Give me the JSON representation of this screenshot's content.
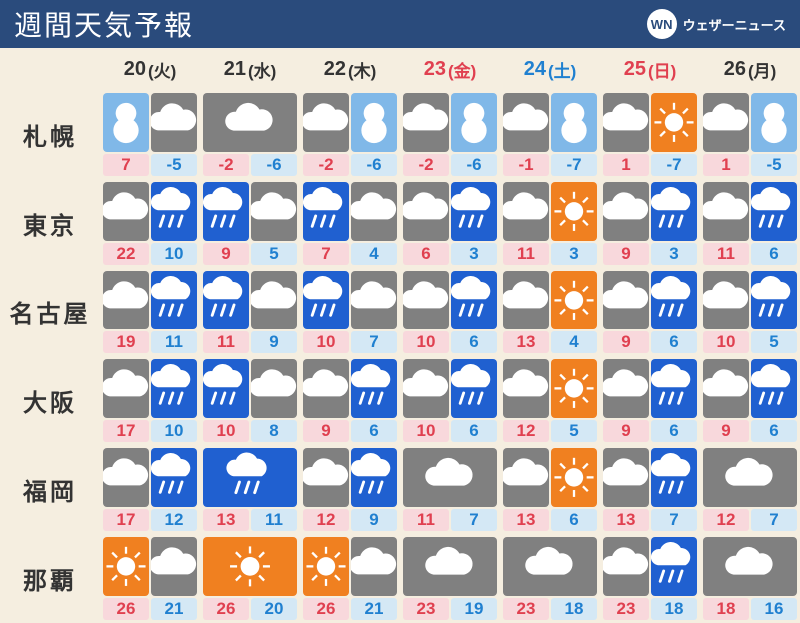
{
  "title": "週間天気予報",
  "brand": "ウェザーニュース",
  "brand_logo": "WN",
  "colors": {
    "header_bg": "#2a4b7c",
    "page_bg": "#f5eee0",
    "gray": "#808080",
    "blue": "#2060d0",
    "lightblue": "#80b8e8",
    "orange": "#f08020",
    "high_bg": "#f8d8dc",
    "high_fg": "#e04050",
    "low_bg": "#d4e8f5",
    "low_fg": "#2080d0",
    "weekday": "#333333",
    "fri_sun": "#e04050",
    "sat": "#2080d0"
  },
  "days": [
    {
      "num": "20",
      "label": "(火)",
      "color": "#333333"
    },
    {
      "num": "21",
      "label": "(水)",
      "color": "#333333"
    },
    {
      "num": "22",
      "label": "(木)",
      "color": "#333333"
    },
    {
      "num": "23",
      "label": "(金)",
      "color": "#e04050"
    },
    {
      "num": "24",
      "label": "(土)",
      "color": "#2080d0"
    },
    {
      "num": "25",
      "label": "(日)",
      "color": "#e04050"
    },
    {
      "num": "26",
      "label": "(月)",
      "color": "#333333"
    }
  ],
  "cities": [
    "札幌",
    "東京",
    "名古屋",
    "大阪",
    "福岡",
    "那覇"
  ],
  "forecast": [
    [
      {
        "i1": "snow",
        "c1": "lightblue",
        "i2": "cloud",
        "c2": "gray",
        "h": "7",
        "l": "-5"
      },
      {
        "i1": "cloud",
        "c1": "gray",
        "i2": "",
        "c2": "",
        "h": "-2",
        "l": "-6"
      },
      {
        "i1": "cloud",
        "c1": "gray",
        "i2": "snow",
        "c2": "lightblue",
        "h": "-2",
        "l": "-6"
      },
      {
        "i1": "cloud",
        "c1": "gray",
        "i2": "snow",
        "c2": "lightblue",
        "h": "-2",
        "l": "-6"
      },
      {
        "i1": "cloud",
        "c1": "gray",
        "i2": "snow",
        "c2": "lightblue",
        "h": "-1",
        "l": "-7"
      },
      {
        "i1": "cloud",
        "c1": "gray",
        "i2": "sun",
        "c2": "orange",
        "h": "1",
        "l": "-7"
      },
      {
        "i1": "cloud",
        "c1": "gray",
        "i2": "snow",
        "c2": "lightblue",
        "h": "1",
        "l": "-5"
      }
    ],
    [
      {
        "i1": "cloud",
        "c1": "gray",
        "i2": "rain",
        "c2": "blue",
        "h": "22",
        "l": "10"
      },
      {
        "i1": "rain",
        "c1": "blue",
        "i2": "cloud",
        "c2": "gray",
        "h": "9",
        "l": "5"
      },
      {
        "i1": "rain",
        "c1": "blue",
        "i2": "cloud",
        "c2": "gray",
        "h": "7",
        "l": "4"
      },
      {
        "i1": "cloud",
        "c1": "gray",
        "i2": "rain",
        "c2": "blue",
        "h": "6",
        "l": "3"
      },
      {
        "i1": "cloud",
        "c1": "gray",
        "i2": "sun",
        "c2": "orange",
        "h": "11",
        "l": "3"
      },
      {
        "i1": "cloud",
        "c1": "gray",
        "i2": "rain",
        "c2": "blue",
        "h": "9",
        "l": "3"
      },
      {
        "i1": "cloud",
        "c1": "gray",
        "i2": "rain",
        "c2": "blue",
        "h": "11",
        "l": "6"
      }
    ],
    [
      {
        "i1": "cloud",
        "c1": "gray",
        "i2": "rain",
        "c2": "blue",
        "h": "19",
        "l": "11"
      },
      {
        "i1": "rain",
        "c1": "blue",
        "i2": "cloud",
        "c2": "gray",
        "h": "11",
        "l": "9"
      },
      {
        "i1": "rain",
        "c1": "blue",
        "i2": "cloud",
        "c2": "gray",
        "h": "10",
        "l": "7"
      },
      {
        "i1": "cloud",
        "c1": "gray",
        "i2": "rain",
        "c2": "blue",
        "h": "10",
        "l": "6"
      },
      {
        "i1": "cloud",
        "c1": "gray",
        "i2": "sun",
        "c2": "orange",
        "h": "13",
        "l": "4"
      },
      {
        "i1": "cloud",
        "c1": "gray",
        "i2": "rain",
        "c2": "blue",
        "h": "9",
        "l": "6"
      },
      {
        "i1": "cloud",
        "c1": "gray",
        "i2": "rain",
        "c2": "blue",
        "h": "10",
        "l": "5"
      }
    ],
    [
      {
        "i1": "cloud",
        "c1": "gray",
        "i2": "rain",
        "c2": "blue",
        "h": "17",
        "l": "10"
      },
      {
        "i1": "rain",
        "c1": "blue",
        "i2": "cloud",
        "c2": "gray",
        "h": "10",
        "l": "8"
      },
      {
        "i1": "cloud",
        "c1": "gray",
        "i2": "rain",
        "c2": "blue",
        "h": "9",
        "l": "6"
      },
      {
        "i1": "cloud",
        "c1": "gray",
        "i2": "rain",
        "c2": "blue",
        "h": "10",
        "l": "6"
      },
      {
        "i1": "cloud",
        "c1": "gray",
        "i2": "sun",
        "c2": "orange",
        "h": "12",
        "l": "5"
      },
      {
        "i1": "cloud",
        "c1": "gray",
        "i2": "rain",
        "c2": "blue",
        "h": "9",
        "l": "6"
      },
      {
        "i1": "cloud",
        "c1": "gray",
        "i2": "rain",
        "c2": "blue",
        "h": "9",
        "l": "6"
      }
    ],
    [
      {
        "i1": "cloud",
        "c1": "gray",
        "i2": "rain",
        "c2": "blue",
        "h": "17",
        "l": "12"
      },
      {
        "i1": "rain",
        "c1": "blue",
        "i2": "",
        "c2": "",
        "h": "13",
        "l": "11"
      },
      {
        "i1": "cloud",
        "c1": "gray",
        "i2": "rain",
        "c2": "blue",
        "h": "12",
        "l": "9"
      },
      {
        "i1": "cloud",
        "c1": "gray",
        "i2": "",
        "c2": "",
        "h": "11",
        "l": "7"
      },
      {
        "i1": "cloud",
        "c1": "gray",
        "i2": "sun",
        "c2": "orange",
        "h": "13",
        "l": "6"
      },
      {
        "i1": "cloud",
        "c1": "gray",
        "i2": "rain",
        "c2": "blue",
        "h": "13",
        "l": "7"
      },
      {
        "i1": "cloud",
        "c1": "gray",
        "i2": "",
        "c2": "",
        "h": "12",
        "l": "7"
      }
    ],
    [
      {
        "i1": "sun",
        "c1": "orange",
        "i2": "cloud",
        "c2": "gray",
        "h": "26",
        "l": "21"
      },
      {
        "i1": "sun",
        "c1": "orange",
        "i2": "",
        "c2": "",
        "h": "26",
        "l": "20"
      },
      {
        "i1": "sun",
        "c1": "orange",
        "i2": "cloud",
        "c2": "gray",
        "h": "26",
        "l": "21"
      },
      {
        "i1": "cloud",
        "c1": "gray",
        "i2": "",
        "c2": "",
        "h": "23",
        "l": "19"
      },
      {
        "i1": "cloud",
        "c1": "gray",
        "i2": "",
        "c2": "",
        "h": "23",
        "l": "18"
      },
      {
        "i1": "cloud",
        "c1": "gray",
        "i2": "rain",
        "c2": "blue",
        "h": "23",
        "l": "18"
      },
      {
        "i1": "cloud",
        "c1": "gray",
        "i2": "",
        "c2": "",
        "h": "18",
        "l": "16"
      }
    ]
  ]
}
